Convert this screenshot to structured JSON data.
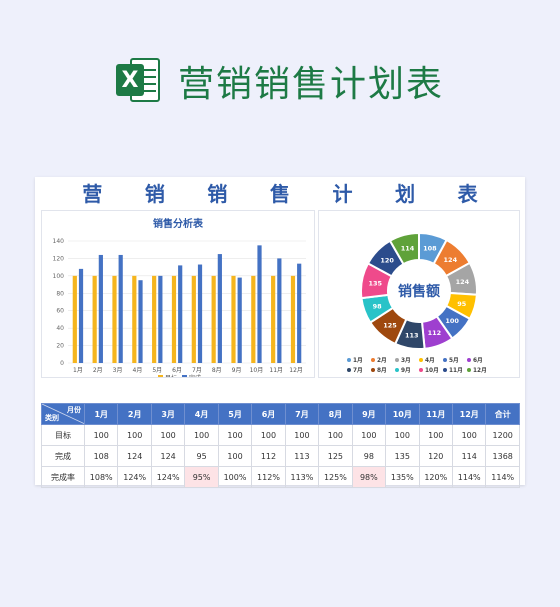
{
  "page_title": "营销销售计划表",
  "logo_letter": "X",
  "sheet_title_chars": [
    "营",
    "销",
    "销",
    "售",
    "计",
    "划",
    "表"
  ],
  "colors": {
    "brand_green": "#1d7a45",
    "header_blue": "#4472c4",
    "bar_target": "#f5b51e",
    "bar_done": "#4472c4",
    "highlight": "#fde3e6"
  },
  "chart_data": [
    {
      "type": "bar",
      "title": "销售分析表",
      "categories": [
        "1月",
        "2月",
        "3月",
        "4月",
        "5月",
        "6月",
        "7月",
        "8月",
        "9月",
        "10月",
        "11月",
        "12月"
      ],
      "series": [
        {
          "name": "目标",
          "color": "#f5b51e",
          "values": [
            100,
            100,
            100,
            100,
            100,
            100,
            100,
            100,
            100,
            100,
            100,
            100
          ]
        },
        {
          "name": "完成",
          "color": "#4472c4",
          "values": [
            108,
            124,
            124,
            95,
            100,
            112,
            113,
            125,
            98,
            135,
            120,
            114
          ]
        }
      ],
      "ylim": [
        0,
        140
      ],
      "yticks": [
        0,
        20,
        40,
        60,
        80,
        100,
        120,
        140
      ],
      "grid": true,
      "legend": "bottom"
    },
    {
      "type": "pie",
      "title": "销售额",
      "categories": [
        "1月",
        "2月",
        "3月",
        "4月",
        "5月",
        "6月",
        "7月",
        "8月",
        "9月",
        "10月",
        "11月",
        "12月"
      ],
      "values": [
        108,
        124,
        124,
        95,
        100,
        112,
        113,
        125,
        98,
        135,
        120,
        114
      ],
      "colors": [
        "#5b9bd5",
        "#ed7d31",
        "#a5a5a5",
        "#ffc000",
        "#4472c4",
        "#9e3fcf",
        "#2f4769",
        "#9e480e",
        "#28c3c8",
        "#ef4a8b",
        "#2c4c8c",
        "#5fa23a"
      ],
      "legend": "bottom"
    }
  ],
  "table": {
    "corner_top": "月份",
    "corner_bottom": "类别",
    "headers": [
      "1月",
      "2月",
      "3月",
      "4月",
      "5月",
      "6月",
      "7月",
      "8月",
      "9月",
      "10月",
      "11月",
      "12月",
      "合计"
    ],
    "rows": [
      {
        "label": "目标",
        "cells": [
          "100",
          "100",
          "100",
          "100",
          "100",
          "100",
          "100",
          "100",
          "100",
          "100",
          "100",
          "100",
          "1200"
        ]
      },
      {
        "label": "完成",
        "cells": [
          "108",
          "124",
          "124",
          "95",
          "100",
          "112",
          "113",
          "125",
          "98",
          "135",
          "120",
          "114",
          "1368"
        ]
      },
      {
        "label": "完成率",
        "cells": [
          "108%",
          "124%",
          "124%",
          "95%",
          "100%",
          "112%",
          "113%",
          "125%",
          "98%",
          "135%",
          "120%",
          "114%",
          "114%"
        ]
      }
    ],
    "highlight_cells": [
      [
        2,
        3
      ],
      [
        2,
        8
      ]
    ]
  }
}
